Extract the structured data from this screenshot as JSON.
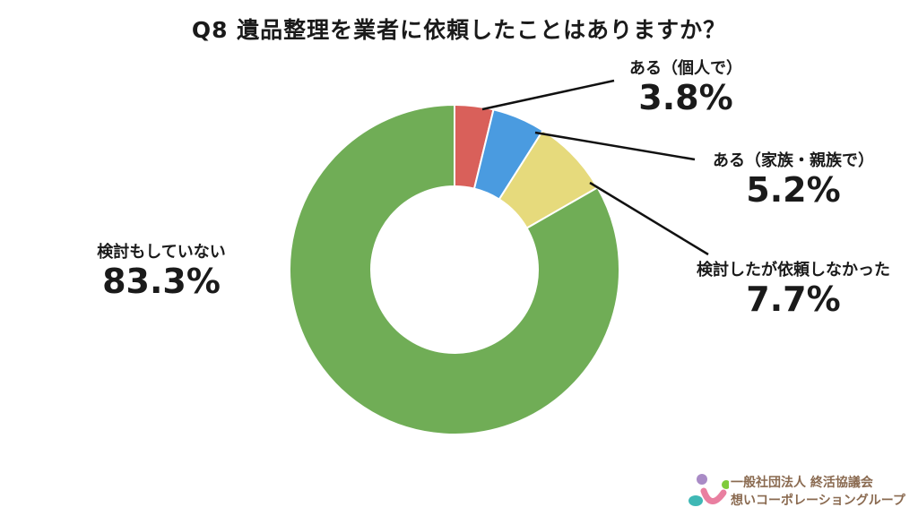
{
  "chart_data": {
    "type": "pie",
    "variant": "donut",
    "title": "Q8 遺品整理を業者に依頼したことはありますか？",
    "categories": [
      "ある（個人で）",
      "ある（家族・親族で）",
      "検討したが依頼しなかった",
      "検討もしていない"
    ],
    "values": [
      3.8,
      5.2,
      7.7,
      83.3
    ],
    "value_labels": [
      "3.8%",
      "5.2%",
      "7.7%",
      "83.3%"
    ],
    "colors": [
      "#d9605a",
      "#4a9be0",
      "#e6da7c",
      "#70ad56"
    ],
    "start_angle": "12 o'clock",
    "direction": "clockwise"
  },
  "logo": {
    "line1": "一般社団法人 終活協議会",
    "line2": "想いコーポレーショングループ"
  }
}
